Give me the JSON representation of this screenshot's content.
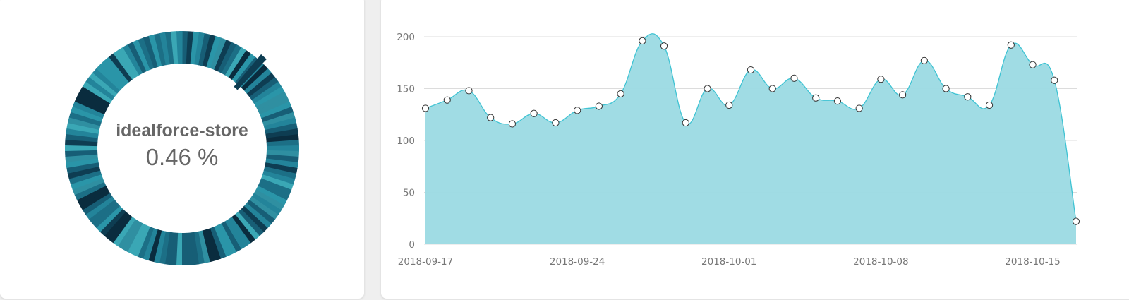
{
  "donut": {
    "name": "idealforce-store",
    "percent_label": "0.46 %",
    "segment_count": 130,
    "palette": [
      "#2a95a8",
      "#23849a",
      "#1c6f86",
      "#175e76",
      "#0e3d52",
      "#0a2c3e",
      "#3aa7b5",
      "#2f8fa1"
    ]
  },
  "chart_data": {
    "type": "area",
    "title": "",
    "xlabel": "",
    "ylabel": "",
    "ylim": [
      0,
      200
    ],
    "yticks": [
      0,
      50,
      100,
      150,
      200
    ],
    "x_ticks": [
      "2018-09-17",
      "2018-09-24",
      "2018-10-01",
      "2018-10-08",
      "2018-10-15"
    ],
    "x": [
      "2018-09-17",
      "2018-09-18",
      "2018-09-19",
      "2018-09-20",
      "2018-09-21",
      "2018-09-22",
      "2018-09-23",
      "2018-09-24",
      "2018-09-25",
      "2018-09-26",
      "2018-09-27",
      "2018-09-28",
      "2018-09-29",
      "2018-09-30",
      "2018-10-01",
      "2018-10-02",
      "2018-10-03",
      "2018-10-04",
      "2018-10-05",
      "2018-10-06",
      "2018-10-07",
      "2018-10-08",
      "2018-10-09",
      "2018-10-10",
      "2018-10-11",
      "2018-10-12",
      "2018-10-13",
      "2018-10-14",
      "2018-10-15",
      "2018-10-16",
      "2018-10-17"
    ],
    "values": [
      131,
      139,
      148,
      122,
      116,
      126,
      117,
      129,
      133,
      145,
      196,
      191,
      117,
      150,
      134,
      168,
      150,
      160,
      141,
      138,
      131,
      159,
      144,
      177,
      150,
      142,
      134,
      192,
      173,
      158,
      22
    ],
    "grid": true,
    "colors": {
      "fill": "#9bdae3",
      "line": "#3fc3d3",
      "grid": "#dcdcdc",
      "marker_fill": "#ffffff",
      "marker_stroke": "#333333"
    }
  }
}
